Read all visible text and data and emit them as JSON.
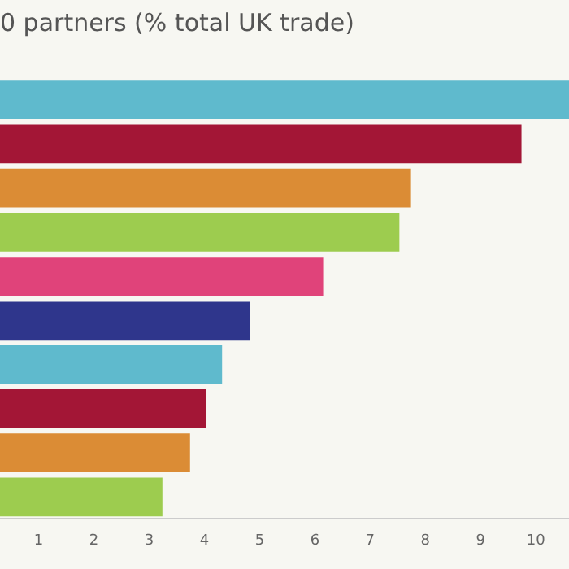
{
  "chart_data": {
    "type": "bar",
    "orientation": "horizontal",
    "title": "0 partners (% total UK trade)",
    "categories": [
      null,
      null,
      null,
      null,
      null,
      null,
      null,
      null,
      null,
      null
    ],
    "values": [
      10.6,
      9.74,
      7.74,
      7.53,
      6.15,
      4.82,
      4.32,
      4.03,
      3.74,
      3.24
    ],
    "colors": [
      "#5fbacd",
      "#a31636",
      "#db8c35",
      "#9dcc4f",
      "#e0437a",
      "#2f368c",
      "#5fbacd",
      "#a31636",
      "#db8c35",
      "#9dcc4f"
    ],
    "xlim": [
      0.3,
      10.6
    ],
    "xticks": [
      1,
      2,
      3,
      4,
      5,
      6,
      7,
      8,
      9,
      10
    ],
    "grid": false,
    "legend": false
  }
}
